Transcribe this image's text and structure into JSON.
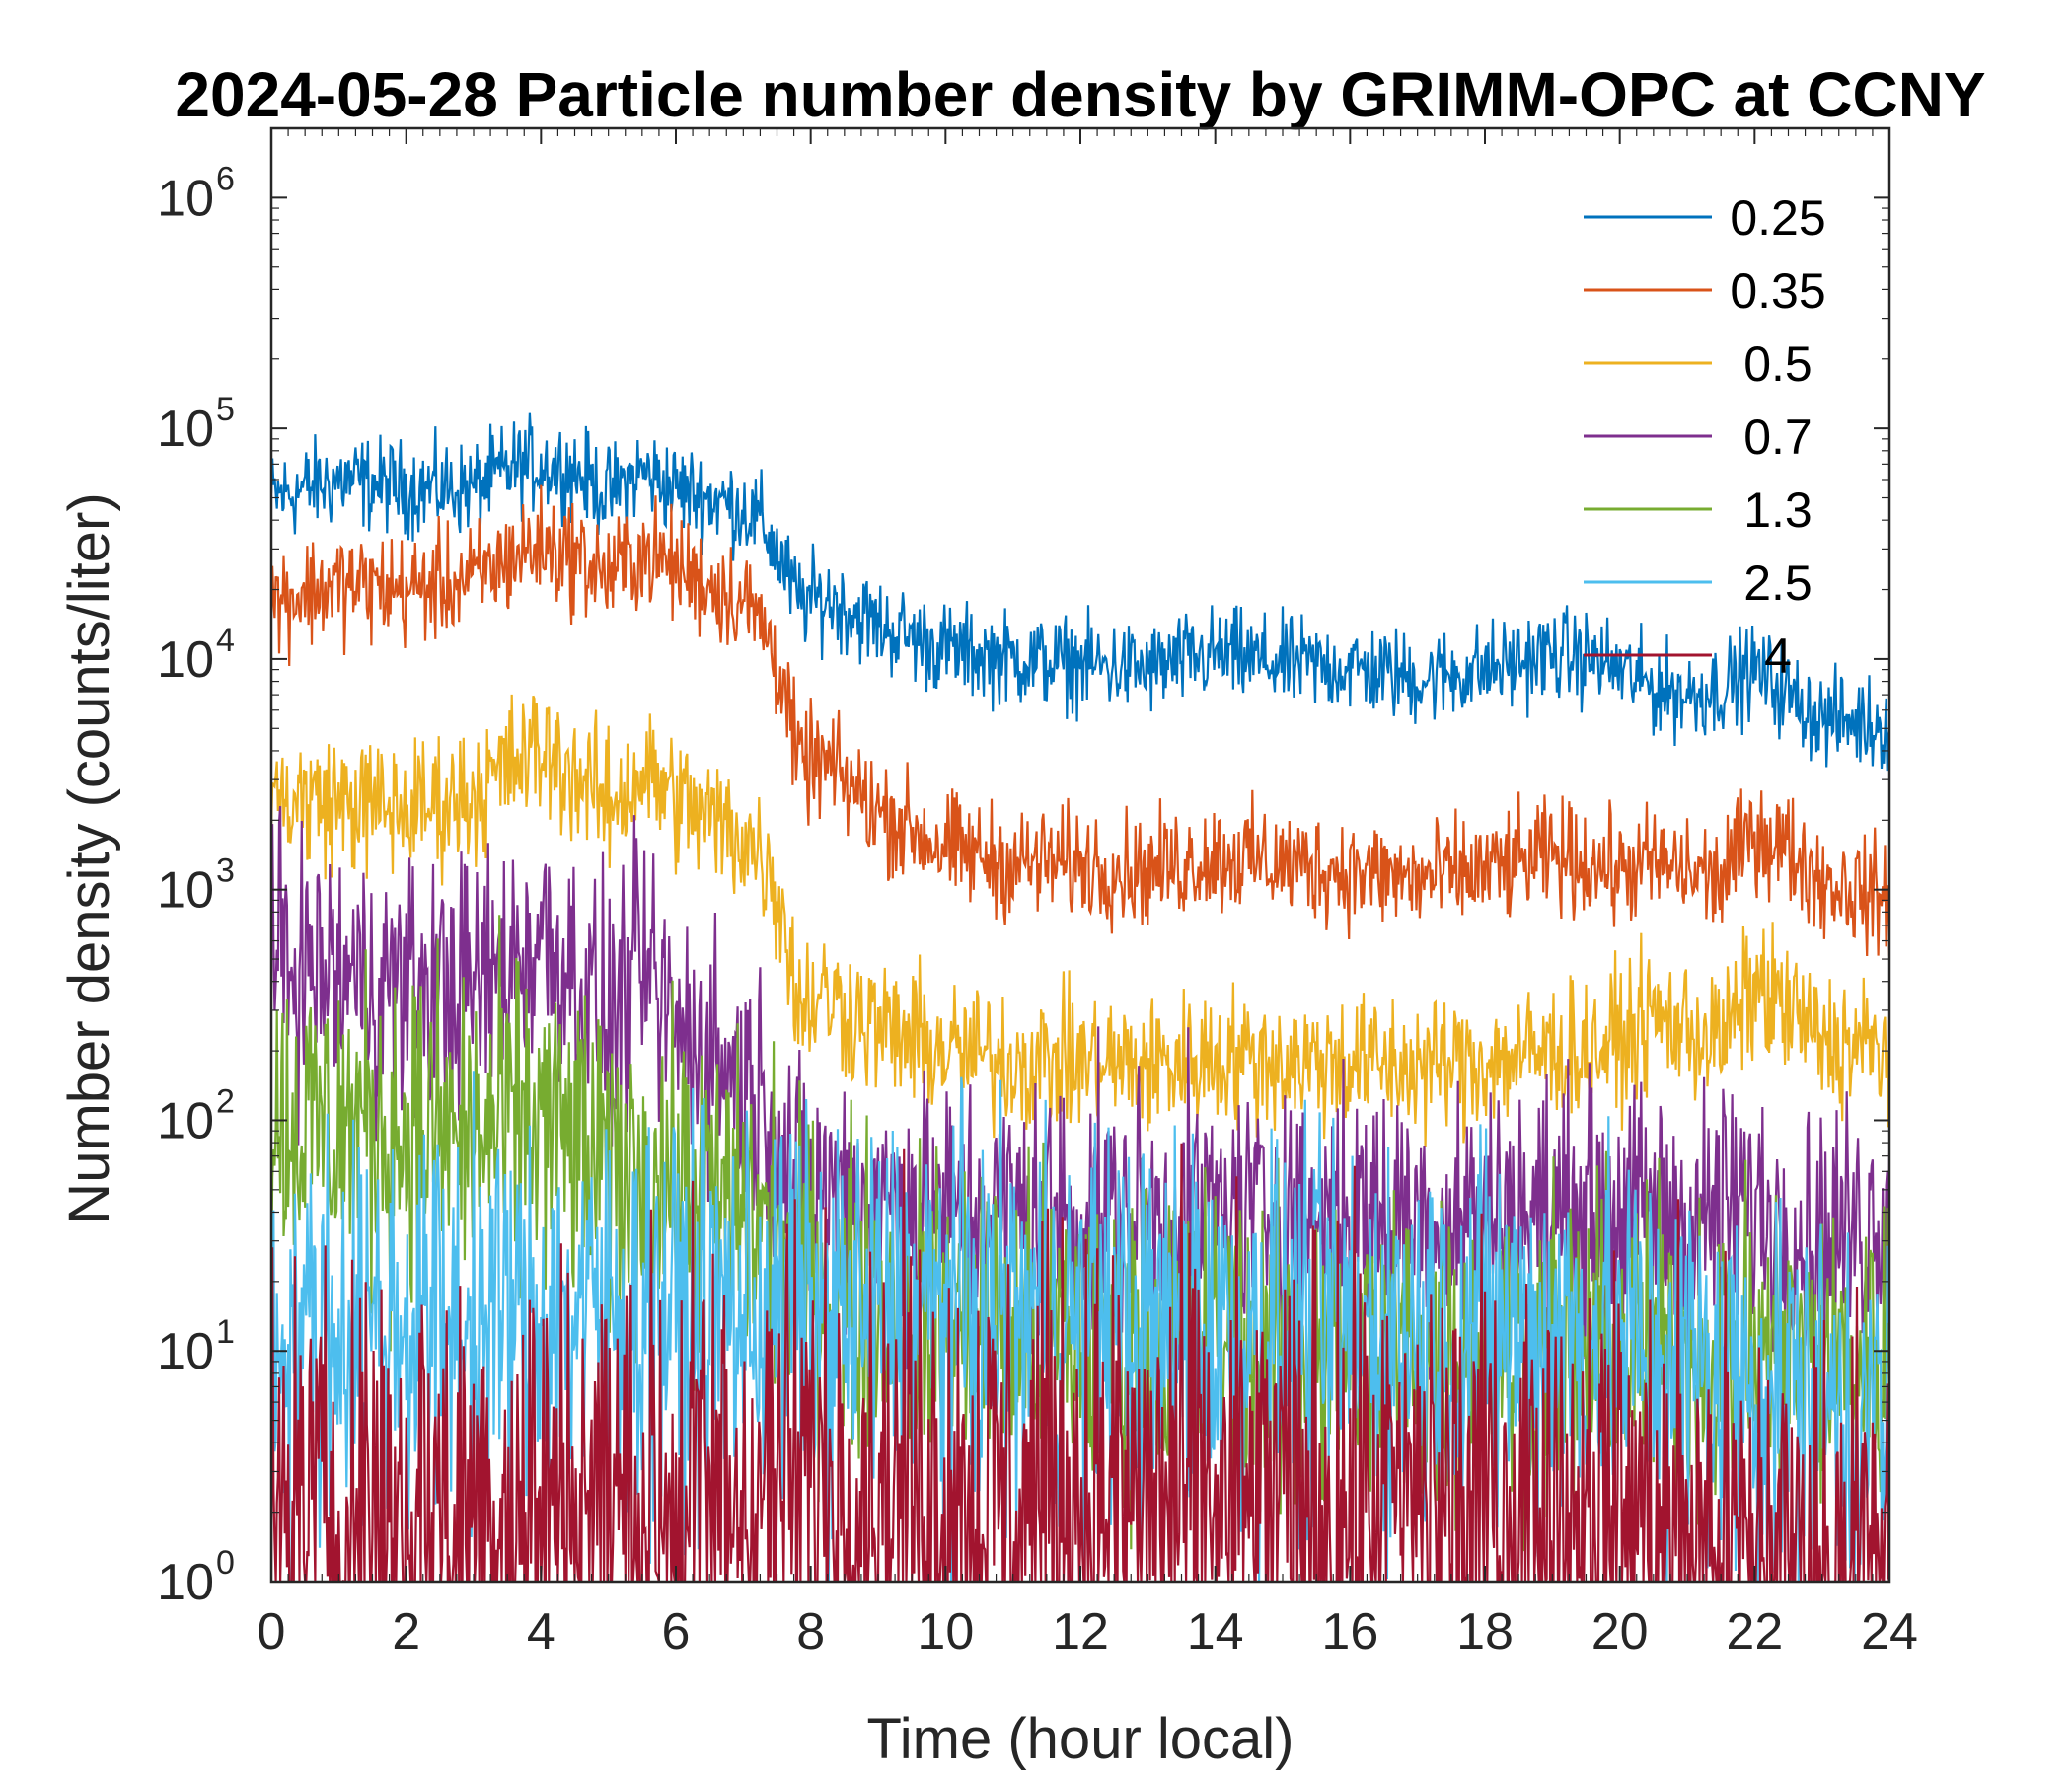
{
  "chart_data": {
    "type": "line",
    "title": "2024-05-28 Particle number density by GRIMM-OPC at CCNY",
    "xlabel": "Time (hour local)",
    "ylabel": "Number density (counts/liter)",
    "xlim": [
      0,
      24
    ],
    "ylim": [
      1,
      2000000
    ],
    "yscale": "log",
    "x_ticks": [
      "0",
      "2",
      "4",
      "6",
      "8",
      "10",
      "12",
      "14",
      "16",
      "18",
      "20",
      "22",
      "24"
    ],
    "y_ticks": [
      {
        "value": 1,
        "base": "10",
        "exp": "0"
      },
      {
        "value": 10,
        "base": "10",
        "exp": "1"
      },
      {
        "value": 100,
        "base": "10",
        "exp": "2"
      },
      {
        "value": 1000,
        "base": "10",
        "exp": "3"
      },
      {
        "value": 10000,
        "base": "10",
        "exp": "4"
      },
      {
        "value": 100000,
        "base": "10",
        "exp": "5"
      },
      {
        "value": 1000000,
        "base": "10",
        "exp": "6"
      }
    ],
    "grid": false,
    "legend_position": "top-right",
    "series": [
      {
        "name": "0.25",
        "color": "#0072BD",
        "noise": 0.1,
        "x": [
          0,
          1,
          2,
          3,
          3.6,
          4,
          4.5,
          5,
          5.5,
          6,
          6.5,
          7,
          7.3,
          7.6,
          7.8,
          8.3,
          9,
          10,
          11,
          12,
          13,
          14,
          15,
          16,
          17,
          18,
          19,
          19.6,
          20,
          20.5,
          21,
          21.5,
          22,
          22.5,
          23,
          24
        ],
        "y": [
          50000,
          60000,
          55000,
          55000,
          68000,
          70000,
          65000,
          52000,
          65000,
          55000,
          50000,
          45000,
          38000,
          25000,
          18000,
          18000,
          14000,
          11000,
          10000,
          9500,
          9000,
          10500,
          9500,
          9200,
          8200,
          9000,
          10500,
          10000,
          9000,
          7500,
          7000,
          7500,
          9000,
          7000,
          5500,
          5200
        ]
      },
      {
        "name": "0.35",
        "color": "#D95319",
        "noise": 0.12,
        "x": [
          0,
          1,
          2,
          3,
          3.6,
          4,
          4.5,
          5,
          5.5,
          6,
          6.5,
          7,
          7.3,
          7.6,
          7.8,
          8.2,
          9,
          10,
          11,
          12,
          13,
          14,
          15,
          16,
          17,
          18,
          19,
          19.6,
          20,
          20.5,
          21,
          21.5,
          22,
          22.5,
          23,
          24
        ],
        "y": [
          18000,
          21000,
          20000,
          22000,
          28000,
          31000,
          28000,
          23000,
          29000,
          25000,
          21000,
          18000,
          14000,
          8000,
          3500,
          3500,
          2200,
          1500,
          1300,
          1300,
          1200,
          1400,
          1300,
          1200,
          1100,
          1200,
          1400,
          1300,
          1200,
          1300,
          1200,
          1100,
          1800,
          1500,
          1100,
          900
        ]
      },
      {
        "name": "0.5",
        "color": "#EDB120",
        "noise": 0.15,
        "x": [
          0,
          1,
          2,
          3,
          3.6,
          4,
          4.5,
          5,
          5.5,
          6,
          6.5,
          7,
          7.3,
          7.6,
          7.8,
          8.2,
          9,
          10,
          11,
          12,
          13,
          14,
          15,
          16,
          17,
          18,
          19,
          19.6,
          20,
          20.5,
          21,
          21.5,
          22,
          22.5,
          23,
          24
        ],
        "y": [
          2500,
          2400,
          2200,
          2600,
          3500,
          4000,
          3200,
          2300,
          3200,
          2500,
          2000,
          1700,
          1400,
          800,
          320,
          350,
          250,
          200,
          180,
          180,
          170,
          190,
          180,
          180,
          170,
          180,
          200,
          200,
          220,
          280,
          250,
          220,
          380,
          300,
          220,
          200
        ]
      },
      {
        "name": "0.7",
        "color": "#7E2F8E",
        "noise": 0.28,
        "x": [
          0,
          1,
          2,
          3,
          3.6,
          4,
          4.5,
          5,
          5.5,
          6,
          6.5,
          7,
          7.3,
          7.6,
          7.8,
          8.2,
          9,
          10,
          11,
          12,
          13,
          14,
          15,
          16,
          17,
          18,
          19,
          19.6,
          20,
          20.5,
          21,
          21.5,
          22,
          22.5,
          23,
          24
        ],
        "y": [
          500,
          420,
          380,
          380,
          500,
          620,
          450,
          250,
          450,
          250,
          200,
          150,
          120,
          70,
          50,
          50,
          45,
          40,
          40,
          40,
          38,
          40,
          40,
          40,
          38,
          40,
          40,
          40,
          38,
          40,
          35,
          40,
          42,
          35,
          30,
          40
        ]
      },
      {
        "name": "1.3",
        "color": "#77AC30",
        "noise": 0.35,
        "x": [
          0,
          1,
          2,
          3,
          4,
          4.5,
          5,
          5.5,
          6,
          6.5,
          7,
          7.5,
          8,
          9,
          10,
          11,
          12,
          13,
          14,
          15,
          16,
          17,
          18,
          19,
          20,
          21,
          22,
          23,
          24
        ],
        "y": [
          100,
          95,
          90,
          85,
          100,
          80,
          55,
          60,
          55,
          45,
          40,
          30,
          20,
          15,
          14,
          12,
          11,
          11,
          11,
          10,
          10,
          10,
          10,
          10,
          10,
          10,
          10,
          9,
          9
        ]
      },
      {
        "name": "2.5",
        "color": "#4DBEEE",
        "noise": 0.42,
        "x": [
          0,
          2,
          4,
          6,
          8,
          10,
          12,
          14,
          16,
          18,
          20,
          21,
          22,
          23,
          24
        ],
        "y": [
          12,
          13,
          14,
          15,
          14,
          14,
          13,
          12,
          12,
          12,
          11,
          9,
          7,
          6,
          5
        ]
      },
      {
        "name": "4",
        "color": "#A2142F",
        "noise": 0.55,
        "x": [
          0,
          2,
          4,
          6,
          8,
          10,
          12,
          14,
          16,
          18,
          20,
          21,
          22,
          24
        ],
        "y": [
          1.8,
          2,
          2.2,
          2.4,
          2.6,
          2.4,
          2.2,
          2.2,
          2,
          2,
          1.8,
          1.5,
          1.2,
          1.1
        ]
      }
    ]
  }
}
